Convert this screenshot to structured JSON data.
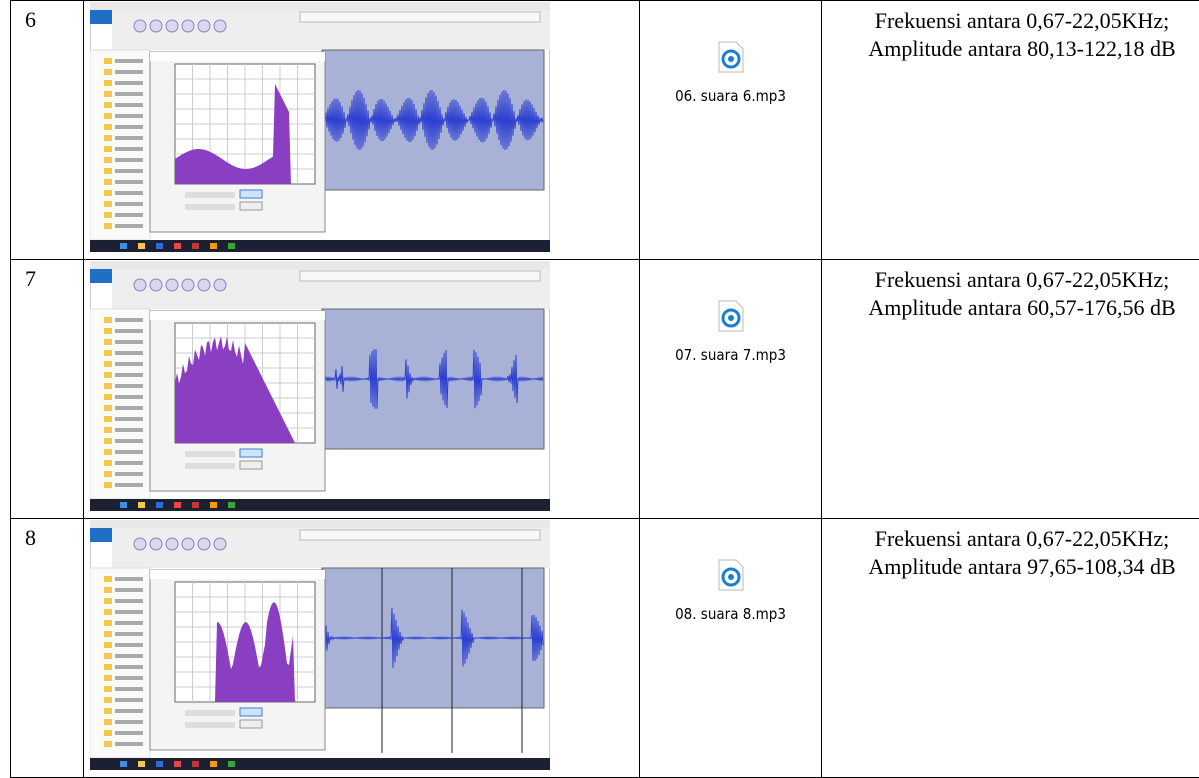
{
  "table": {
    "rows": [
      {
        "number": "6",
        "file": "06. suara 6.mp3",
        "description": "Frekuensi antara  0,67-22,05KHz; Amplitude antara 80,13-122,18 dB"
      },
      {
        "number": "7",
        "file": "07. suara 7.mp3",
        "description": "Frekuensi antara  0,67-22,05KHz; Amplitude antara 60,57-176,56 dB"
      },
      {
        "number": "8",
        "file": "08. suara 8.mp3",
        "description": "Frekuensi antara  0,67-22,05KHz; Amplitude antara 97,65-108,34 dB"
      }
    ]
  }
}
